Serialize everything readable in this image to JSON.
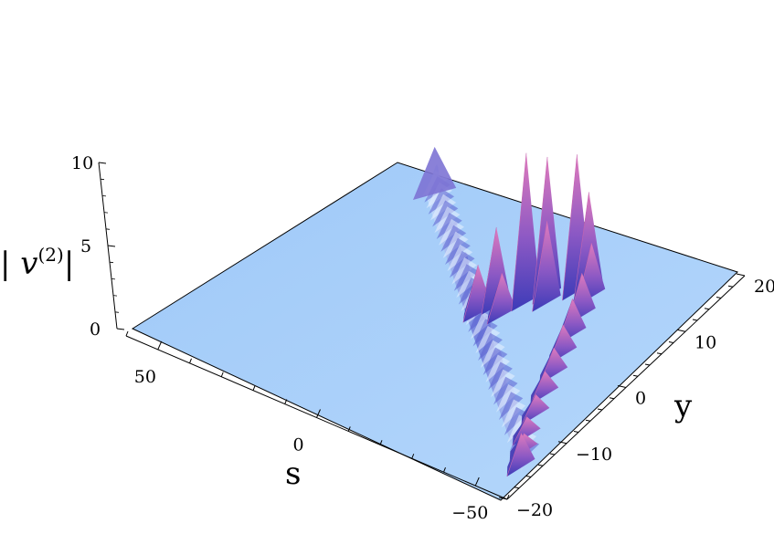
{
  "chart_data": {
    "type": "surface",
    "title": "",
    "zlabel": "| v",
    "zlabel_sup": "(2)",
    "zlabel_end": "|",
    "xlabel": "s",
    "ylabel": "y",
    "s_ticks": [
      "50",
      "0",
      "−50"
    ],
    "y_ticks": [
      "20",
      "10",
      "0",
      "−10",
      "−20"
    ],
    "z_ticks": [
      "10",
      "5",
      "0"
    ],
    "s_range": [
      -60,
      60
    ],
    "y_range": [
      -20,
      20
    ],
    "z_range": [
      0,
      10
    ],
    "ridge": {
      "baseline_height": 0.8,
      "peak_heights": [
        3.2,
        5.1,
        2.8,
        9.6,
        8.9,
        5.3,
        8.8,
        6.2,
        3.5,
        2.8,
        2.4,
        2.0,
        1.8,
        1.6,
        1.4,
        1.3,
        1.2,
        2.2
      ],
      "peak_s": [
        -8,
        -10,
        -14,
        -16,
        -19,
        -21,
        -25,
        -27,
        -30,
        -33,
        -36,
        -39,
        -42,
        -45,
        -48,
        -51,
        -54,
        -57
      ],
      "peak_y": [
        2,
        4,
        3,
        6,
        8,
        7,
        10,
        11,
        10,
        7,
        4,
        1,
        -2,
        -5,
        -8,
        -11,
        -13,
        -15
      ]
    },
    "colors": {
      "plane": "#a6cdf9",
      "ridge_low": "#4b46c4",
      "ridge_high": "#d36fb6",
      "outline": "#000000"
    }
  }
}
